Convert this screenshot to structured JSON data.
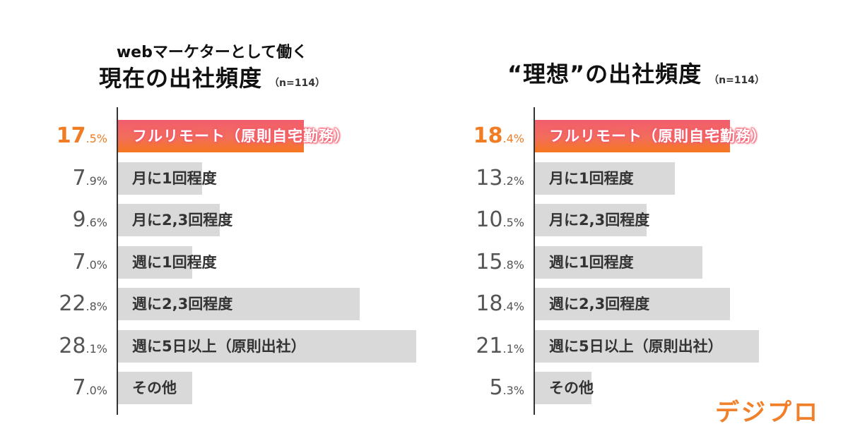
{
  "chart_data": [
    {
      "type": "bar",
      "orientation": "horizontal",
      "subtitle": "webマーケターとして働く",
      "title": "現在の出社頻度",
      "n_label": "（n=114）",
      "unit": "%",
      "categories": [
        "フルリモート（原則自宅勤務）",
        "月に1回程度",
        "月に2,3回程度",
        "週に1回程度",
        "週に2,3回程度",
        "週に5日以上（原則出社）",
        "その他"
      ],
      "values": [
        17.5,
        7.9,
        9.6,
        7.0,
        22.8,
        28.1,
        7.0
      ],
      "highlight_index": 0,
      "colors": {
        "bar": "#d9d9d9",
        "highlight": "#f25d6e",
        "highlight_text": "#f07c24"
      }
    },
    {
      "type": "bar",
      "orientation": "horizontal",
      "title": "“理想”の出社頻度",
      "n_label": "（n=114）",
      "unit": "%",
      "categories": [
        "フルリモート（原則自宅勤務）",
        "月に1回程度",
        "月に2,3回程度",
        "週に1回程度",
        "週に2,3回程度",
        "週に5日以上（原則出社）",
        "その他"
      ],
      "values": [
        18.4,
        13.2,
        10.5,
        15.8,
        18.4,
        21.1,
        5.3
      ],
      "highlight_index": 0,
      "colors": {
        "bar": "#d9d9d9",
        "highlight": "#f25d6e",
        "highlight_text": "#f07c24"
      }
    }
  ],
  "logo": "デジプロ"
}
